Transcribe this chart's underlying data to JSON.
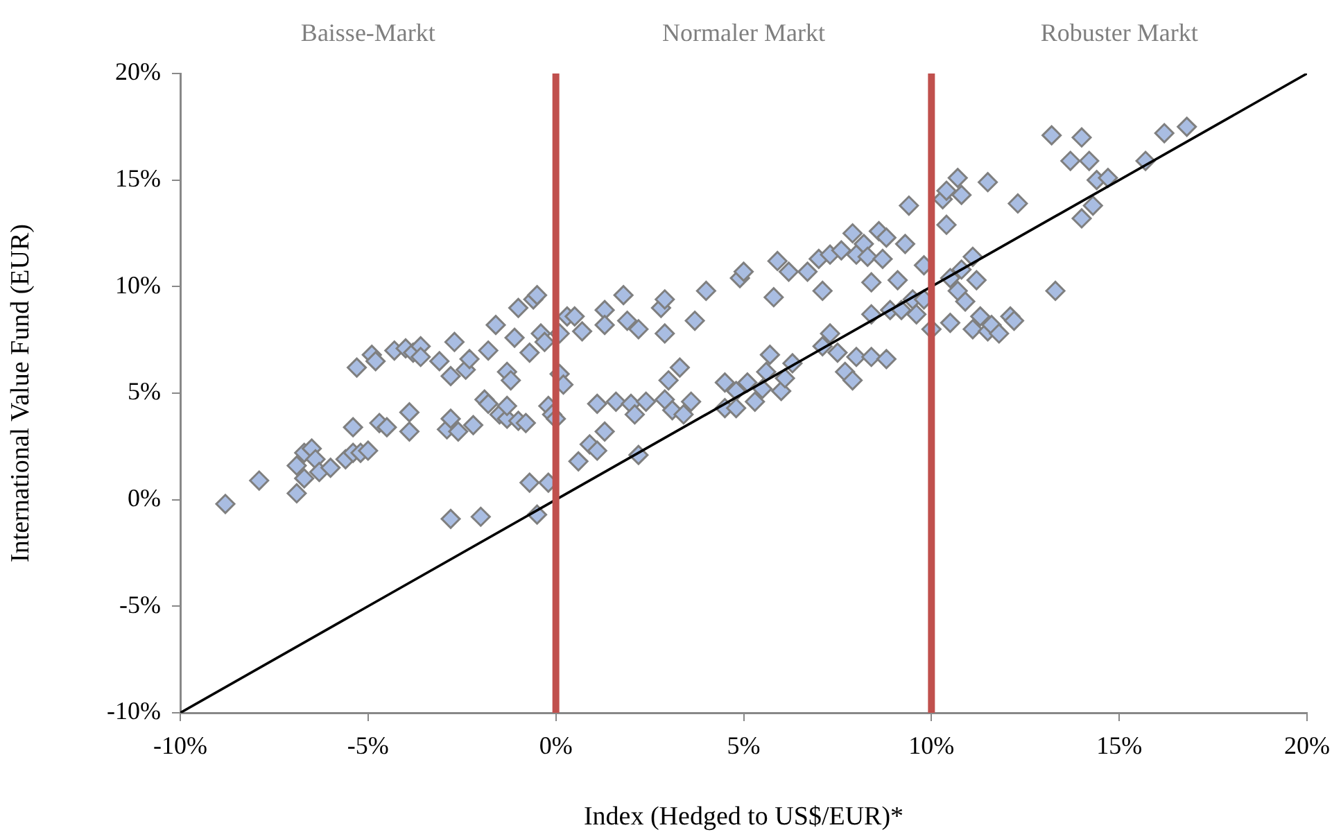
{
  "chart_data": {
    "type": "scatter",
    "xlabel": "Index (Hedged to US$/EUR)*",
    "ylabel": "International Value Fund (EUR)",
    "xlim": [
      -10,
      20
    ],
    "ylim": [
      -10,
      20
    ],
    "xticks": [
      {
        "value": -10,
        "label": "-10%"
      },
      {
        "value": -5,
        "label": "-5%"
      },
      {
        "value": 0,
        "label": "0%"
      },
      {
        "value": 5,
        "label": "5%"
      },
      {
        "value": 10,
        "label": "10%"
      },
      {
        "value": 15,
        "label": "15%"
      },
      {
        "value": 20,
        "label": "20%"
      }
    ],
    "yticks": [
      {
        "value": -10,
        "label": "-10%"
      },
      {
        "value": -5,
        "label": "-5%"
      },
      {
        "value": 0,
        "label": "0%"
      },
      {
        "value": 5,
        "label": "5%"
      },
      {
        "value": 10,
        "label": "10%"
      },
      {
        "value": 15,
        "label": "15%"
      },
      {
        "value": 20,
        "label": "20%"
      }
    ],
    "grid": false,
    "legend": false,
    "ref_lines": [
      {
        "axis": "x",
        "value": 0,
        "color": "#c0504d"
      },
      {
        "axis": "x",
        "value": 10,
        "color": "#c0504d"
      }
    ],
    "annotations": [
      "Baisse-Markt",
      "Normaler Markt",
      "Robuster Markt"
    ],
    "series": [
      {
        "color": "#a9bde2",
        "marker": "diamond",
        "x": [
          -8.8,
          -7.9,
          -6.9,
          -6.9,
          -6.7,
          -6.7,
          -6.5,
          -6.4,
          -6.3,
          -6.0,
          -5.6,
          -5.4,
          -5.4,
          -5.2,
          -5.0,
          -5.3,
          -4.9,
          -4.8,
          -4.7,
          -4.5,
          -4.3,
          -4.0,
          -3.9,
          -3.9,
          -3.8,
          -3.6,
          -3.6,
          -3.1,
          -2.9,
          -2.8,
          -2.7,
          -2.8,
          -2.6,
          -2.4,
          -2.3,
          -2.2,
          -2.8,
          -2.0,
          -1.9,
          -1.8,
          -1.8,
          -1.6,
          -1.5,
          -1.3,
          -1.3,
          -1.3,
          -1.2,
          -1.1,
          -1.0,
          -1.0,
          -0.8,
          -0.7,
          -0.6,
          -0.7,
          -0.5,
          -0.4,
          -0.3,
          -0.2,
          -0.1,
          0.0,
          -0.2,
          0.1,
          0.1,
          0.2,
          0.3,
          0.5,
          0.7,
          -0.5,
          0.6,
          0.9,
          1.1,
          1.1,
          1.3,
          1.3,
          1.3,
          1.6,
          1.8,
          1.9,
          2.0,
          2.1,
          2.2,
          2.2,
          2.4,
          2.8,
          2.9,
          2.9,
          2.9,
          3.0,
          3.1,
          3.3,
          3.4,
          3.6,
          3.7,
          4.0,
          4.5,
          4.5,
          4.8,
          4.8,
          4.9,
          5.0,
          5.1,
          5.3,
          5.5,
          5.6,
          5.7,
          5.8,
          5.9,
          6.0,
          6.1,
          6.2,
          6.3,
          6.7,
          7.0,
          7.1,
          7.1,
          7.3,
          7.3,
          7.5,
          7.6,
          7.7,
          7.9,
          7.9,
          8.0,
          8.0,
          8.2,
          8.3,
          8.4,
          8.4,
          8.4,
          8.6,
          8.7,
          8.8,
          8.9,
          8.8,
          9.1,
          9.2,
          9.3,
          9.4,
          9.5,
          9.6,
          9.8,
          9.8,
          10.0,
          10.3,
          10.4,
          10.4,
          10.5,
          10.5,
          10.7,
          10.8,
          10.8,
          10.9,
          10.7,
          11.1,
          11.2,
          11.3,
          11.1,
          11.5,
          11.5,
          11.6,
          11.8,
          12.1,
          12.2,
          12.3,
          13.2,
          13.3,
          13.7,
          14.0,
          14.0,
          14.2,
          14.3,
          14.4,
          14.7,
          15.7,
          16.2,
          16.8
        ],
        "values": [
          -0.2,
          0.9,
          0.3,
          1.6,
          2.2,
          1.0,
          2.4,
          1.9,
          1.3,
          1.5,
          1.9,
          3.4,
          2.2,
          2.2,
          2.3,
          6.2,
          6.8,
          6.5,
          3.6,
          3.4,
          7.0,
          7.1,
          4.1,
          3.2,
          6.9,
          7.2,
          6.7,
          6.5,
          3.3,
          5.8,
          7.4,
          3.8,
          3.2,
          6.1,
          6.6,
          3.5,
          -0.9,
          -0.8,
          4.7,
          4.5,
          7.0,
          8.2,
          4.0,
          3.8,
          4.4,
          6.0,
          5.6,
          7.6,
          9.0,
          3.7,
          3.6,
          6.9,
          9.4,
          0.8,
          -0.7,
          7.8,
          7.4,
          4.4,
          4.0,
          3.8,
          0.8,
          7.8,
          5.9,
          5.4,
          8.6,
          8.6,
          7.9,
          9.6,
          1.8,
          2.6,
          4.5,
          2.3,
          3.2,
          8.9,
          8.2,
          4.6,
          9.6,
          8.4,
          4.5,
          4.0,
          8.0,
          2.1,
          4.6,
          9.0,
          9.4,
          7.8,
          4.7,
          5.6,
          4.2,
          6.2,
          4.0,
          4.6,
          8.4,
          9.8,
          5.5,
          4.3,
          5.1,
          4.3,
          10.4,
          10.7,
          5.5,
          4.6,
          5.2,
          6.0,
          6.8,
          9.5,
          11.2,
          5.1,
          5.7,
          10.7,
          6.4,
          10.7,
          11.3,
          9.8,
          7.2,
          7.8,
          11.5,
          6.9,
          11.7,
          6.0,
          5.6,
          12.5,
          6.7,
          11.5,
          12.0,
          11.4,
          8.7,
          6.7,
          10.2,
          12.6,
          11.3,
          6.6,
          8.9,
          12.3,
          10.3,
          8.9,
          12.0,
          13.8,
          9.4,
          8.7,
          11.0,
          9.4,
          8.0,
          14.1,
          14.5,
          12.9,
          8.3,
          10.4,
          15.1,
          14.3,
          10.8,
          9.3,
          9.8,
          11.4,
          10.3,
          8.6,
          8.0,
          14.9,
          7.9,
          8.2,
          7.8,
          8.6,
          8.4,
          13.9,
          17.1,
          9.8,
          15.9,
          13.2,
          17.0,
          15.9,
          13.8,
          15.0,
          15.1,
          15.9,
          17.2,
          17.5
        ]
      },
      {
        "type": "line",
        "marker": "none",
        "color": "#000000",
        "x": [
          -10,
          20
        ],
        "values": [
          -10,
          20
        ]
      }
    ]
  }
}
